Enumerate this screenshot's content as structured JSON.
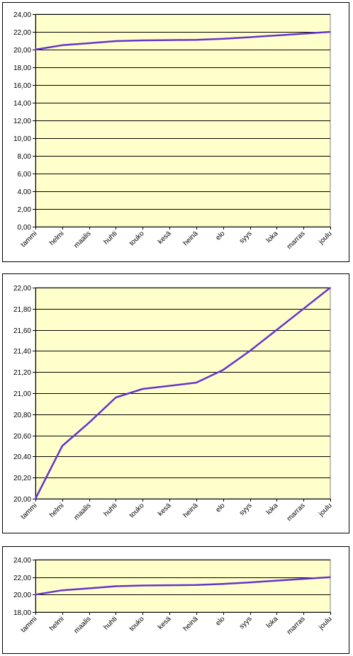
{
  "colors": {
    "plot_bg": "#ffffcc",
    "line": "#6633cc",
    "grid": "#000000"
  },
  "chart_data": [
    {
      "type": "line",
      "categories": [
        "tammi",
        "helmi",
        "maalis",
        "huhti",
        "touko",
        "kesä",
        "heinä",
        "elo",
        "syys",
        "loka",
        "marras",
        "joulu"
      ],
      "series": [
        {
          "values": [
            20.0,
            20.5,
            20.72,
            20.96,
            21.04,
            21.07,
            21.1,
            21.22,
            21.4,
            21.6,
            21.8,
            22.0
          ]
        }
      ],
      "ylim": [
        0,
        24
      ],
      "yticks": [
        "0,00",
        "2,00",
        "4,00",
        "6,00",
        "8,00",
        "10,00",
        "12,00",
        "14,00",
        "16,00",
        "18,00",
        "20,00",
        "22,00",
        "24,00"
      ],
      "grid": true
    },
    {
      "type": "line",
      "categories": [
        "tammi",
        "helmi",
        "maalis",
        "huhti",
        "touko",
        "kesä",
        "heinä",
        "elo",
        "syys",
        "loka",
        "marras",
        "joulu"
      ],
      "series": [
        {
          "values": [
            20.0,
            20.5,
            20.72,
            20.96,
            21.04,
            21.07,
            21.1,
            21.22,
            21.4,
            21.6,
            21.8,
            22.0
          ]
        }
      ],
      "ylim": [
        20,
        22
      ],
      "yticks": [
        "20,00",
        "20,20",
        "20,40",
        "20,60",
        "20,80",
        "21,00",
        "21,20",
        "21,40",
        "21,60",
        "21,80",
        "22,00"
      ],
      "grid": true
    },
    {
      "type": "line",
      "categories": [
        "tammi",
        "helmi",
        "maalis",
        "huhti",
        "touko",
        "kesä",
        "heinä",
        "elo",
        "syys",
        "loka",
        "marras",
        "joulu"
      ],
      "series": [
        {
          "values": [
            20.0,
            20.5,
            20.72,
            20.96,
            21.04,
            21.07,
            21.1,
            21.22,
            21.4,
            21.6,
            21.8,
            22.0
          ]
        }
      ],
      "ylim": [
        18,
        24
      ],
      "yticks": [
        "18,00",
        "20,00",
        "22,00",
        "24,00"
      ],
      "grid": true
    }
  ]
}
